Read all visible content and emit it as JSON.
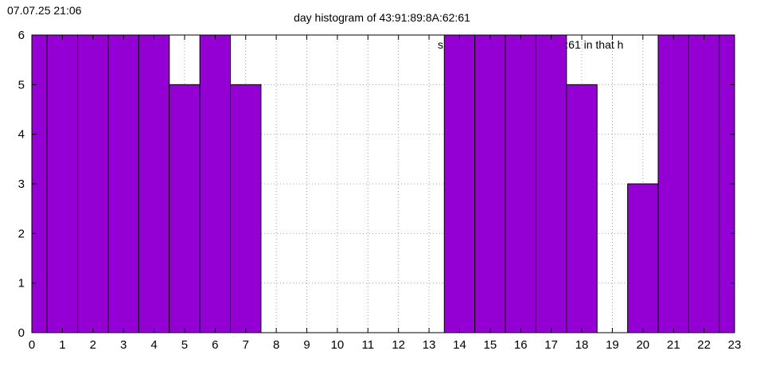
{
  "timestamp": "07.07.25 21:06",
  "chart_data": {
    "type": "bar",
    "title": "day histogram of 43:91:89:8A:62:61",
    "legend_text": "s                              3A:62:61 in that h",
    "legend_position": "top-right",
    "bar_color": "#9400d3",
    "x": [
      -0.5,
      0.5,
      1.5,
      2.5,
      3.5,
      4.5,
      5.5,
      6.5,
      7.5,
      8.5,
      9.5,
      10.5,
      11.5,
      12.5,
      13.5,
      14.5,
      15.5,
      16.5,
      17.5,
      18.5,
      19.5,
      20.5,
      21.5,
      22.5
    ],
    "values": [
      6,
      6,
      6,
      6,
      6,
      5,
      6,
      5,
      0,
      0,
      0,
      0,
      0,
      0,
      6,
      6,
      6,
      6,
      5,
      0,
      3,
      6,
      6,
      6
    ],
    "bar_width": 1,
    "xlim": [
      0,
      23
    ],
    "ylim": [
      0,
      6
    ],
    "xticks": [
      0,
      1,
      2,
      3,
      4,
      5,
      6,
      7,
      8,
      9,
      10,
      11,
      12,
      13,
      14,
      15,
      16,
      17,
      18,
      19,
      20,
      21,
      22,
      23
    ],
    "yticks": [
      0,
      1,
      2,
      3,
      4,
      5,
      6
    ],
    "grid": true
  }
}
